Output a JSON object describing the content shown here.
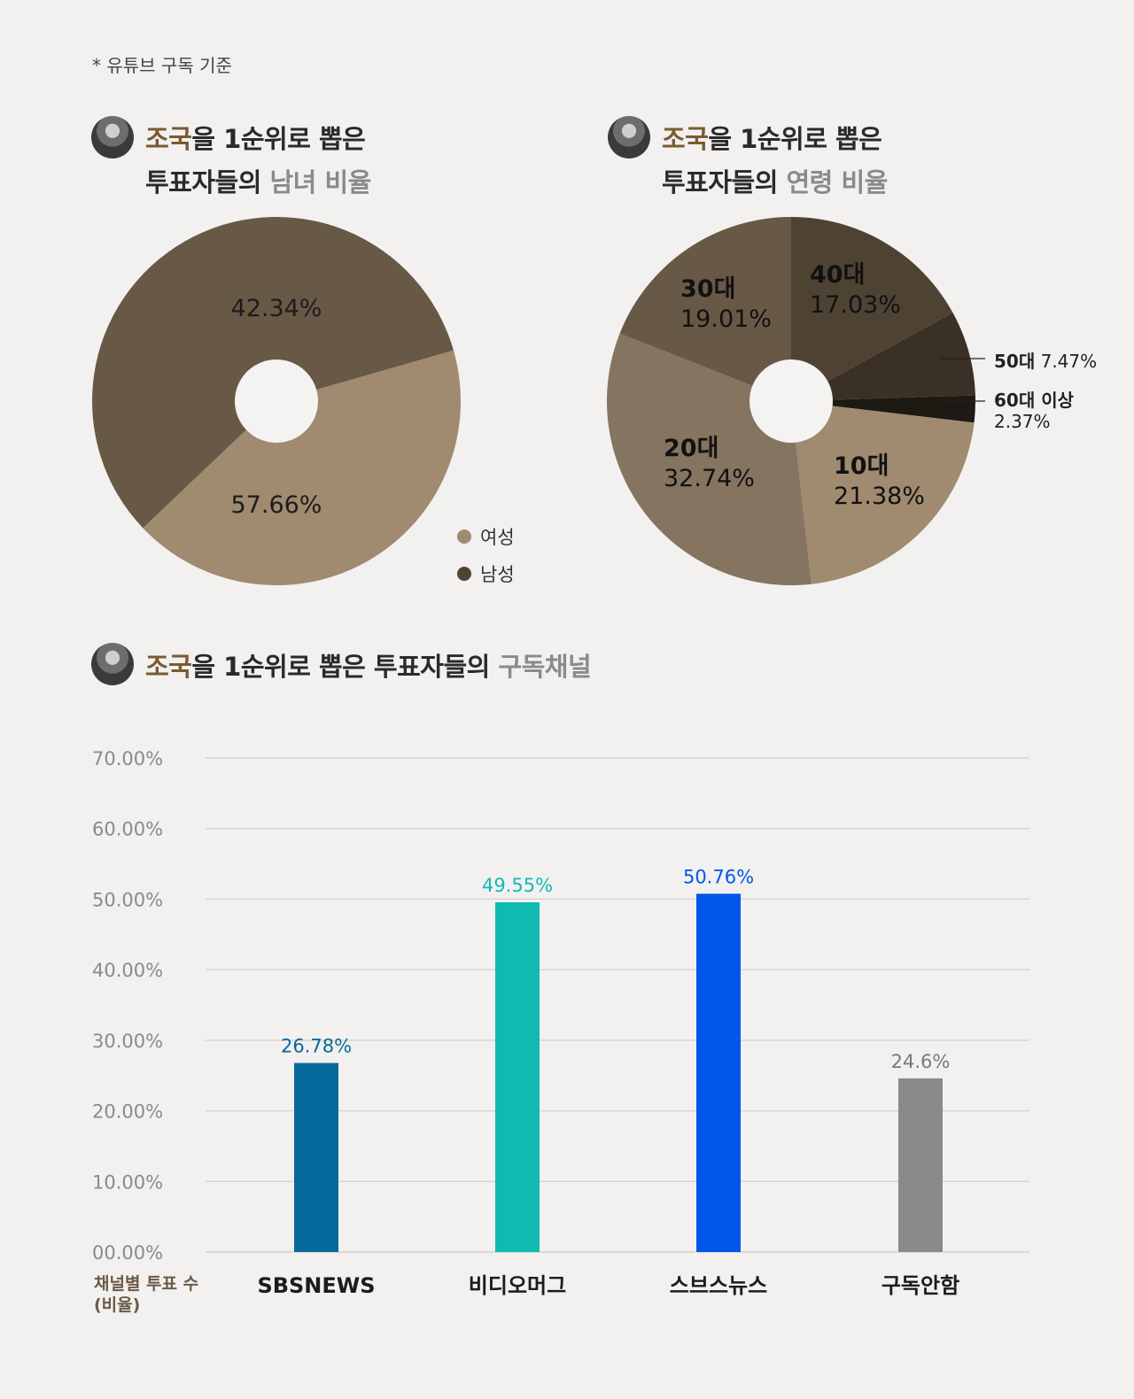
{
  "note": "* 유튜브 구독 기준",
  "charts_titles": {
    "gender": {
      "line1_accent": "조국",
      "line1_rest": "을 1순위로 뽑은",
      "line2_main": "투표자들의 ",
      "line2_accent": "남녀 비율"
    },
    "age": {
      "line1_accent": "조국",
      "line1_rest": "을 1순위로 뽑은",
      "line2_main": "투표자들의 ",
      "line2_accent": "연령 비율"
    },
    "channel": {
      "accent": "조국",
      "main": "을 1순위로 뽑은 투표자들의 ",
      "gray": "구독채널"
    }
  },
  "legend": [
    {
      "label": "여성",
      "color": "#a08a70"
    },
    {
      "label": "남성",
      "color": "#4f4335"
    }
  ],
  "side_labels": {
    "age50": {
      "name": "50대",
      "value": "7.47%"
    },
    "age60": {
      "name": "60대 이상",
      "value": "2.37%"
    }
  },
  "footer": {
    "line1": "채널별 투표 수",
    "line2": "(비율)"
  },
  "chart_data": [
    {
      "type": "pie",
      "categories": [
        "여성",
        "남성"
      ],
      "values": [
        42.34,
        57.66
      ],
      "labels": [
        "42.34%",
        "57.66%"
      ],
      "colors": [
        "#a08a70",
        "#685846"
      ]
    },
    {
      "type": "pie",
      "categories": [
        "40대",
        "50대",
        "60대 이상",
        "10대",
        "20대",
        "30대"
      ],
      "values": [
        17.03,
        7.47,
        2.37,
        21.38,
        32.74,
        19.01
      ],
      "labels": [
        "17.03%",
        "7.47%",
        "2.37%",
        "21.38%",
        "32.74%",
        "19.01%"
      ],
      "colors": [
        "#4e4233",
        "#3a3025",
        "#1d1913",
        "#a08a70",
        "#857460",
        "#685846"
      ]
    },
    {
      "type": "bar",
      "categories": [
        "SBSNEWS",
        "비디오머그",
        "스브스뉴스",
        "구독안함"
      ],
      "values": [
        26.78,
        49.55,
        50.76,
        24.6
      ],
      "labels": [
        "26.78%",
        "49.55%",
        "50.76%",
        "24.6%"
      ],
      "colors": [
        "#06699b",
        "#0fbab1",
        "#0057ea",
        "#8a8a8a"
      ],
      "yticks": [
        "00.00%",
        "10.00%",
        "20.00%",
        "30.00%",
        "40.00%",
        "50.00%",
        "60.00%",
        "70.00%"
      ],
      "ylim": [
        0,
        70
      ]
    }
  ]
}
